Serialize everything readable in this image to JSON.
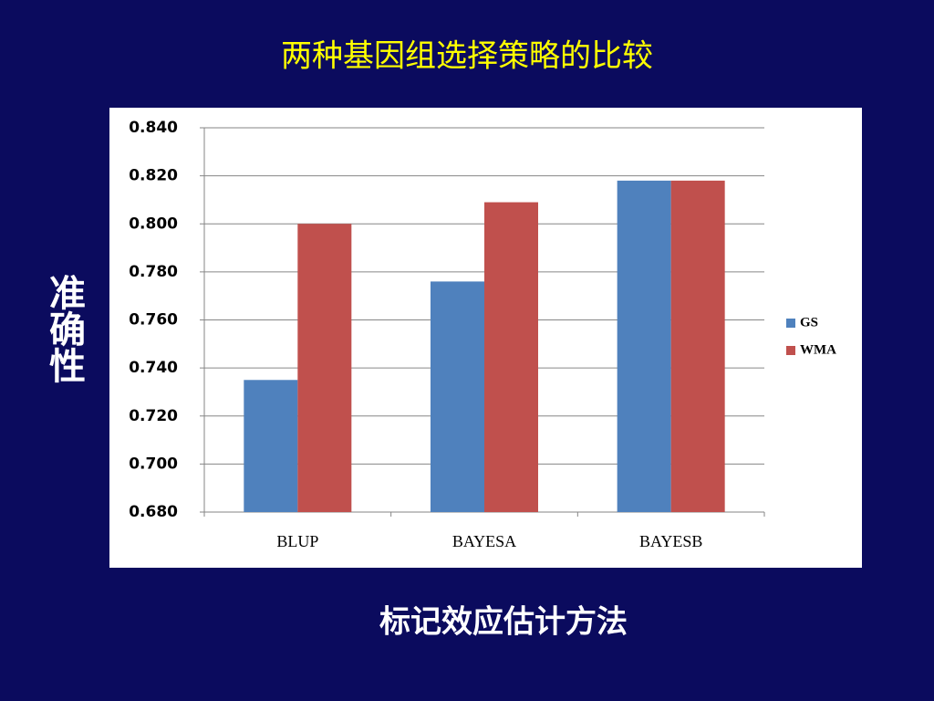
{
  "chart_data": {
    "type": "bar",
    "title": "两种基因组选择策略的比较",
    "y_label": "准确性",
    "x_label": "标记效应估计方法",
    "categories": [
      "BLUP",
      "BAYESA",
      "BAYESB"
    ],
    "series": [
      {
        "name": "GS",
        "color": "#4f81bd",
        "values": [
          0.735,
          0.776,
          0.818
        ]
      },
      {
        "name": "WMA",
        "color": "#c0504d",
        "values": [
          0.8,
          0.809,
          0.818
        ]
      }
    ],
    "ylim": [
      0.68,
      0.84
    ],
    "yticks": [
      {
        "value": 0.68,
        "label": "0.680"
      },
      {
        "value": 0.7,
        "label": "0.700"
      },
      {
        "value": 0.72,
        "label": "0.720"
      },
      {
        "value": 0.74,
        "label": "0.740"
      },
      {
        "value": 0.76,
        "label": "0.760"
      },
      {
        "value": 0.78,
        "label": "0.780"
      },
      {
        "value": 0.8,
        "label": "0.800"
      },
      {
        "value": 0.82,
        "label": "0.820"
      },
      {
        "value": 0.84,
        "label": "0.840"
      }
    ],
    "grid": true,
    "legend": "right"
  }
}
